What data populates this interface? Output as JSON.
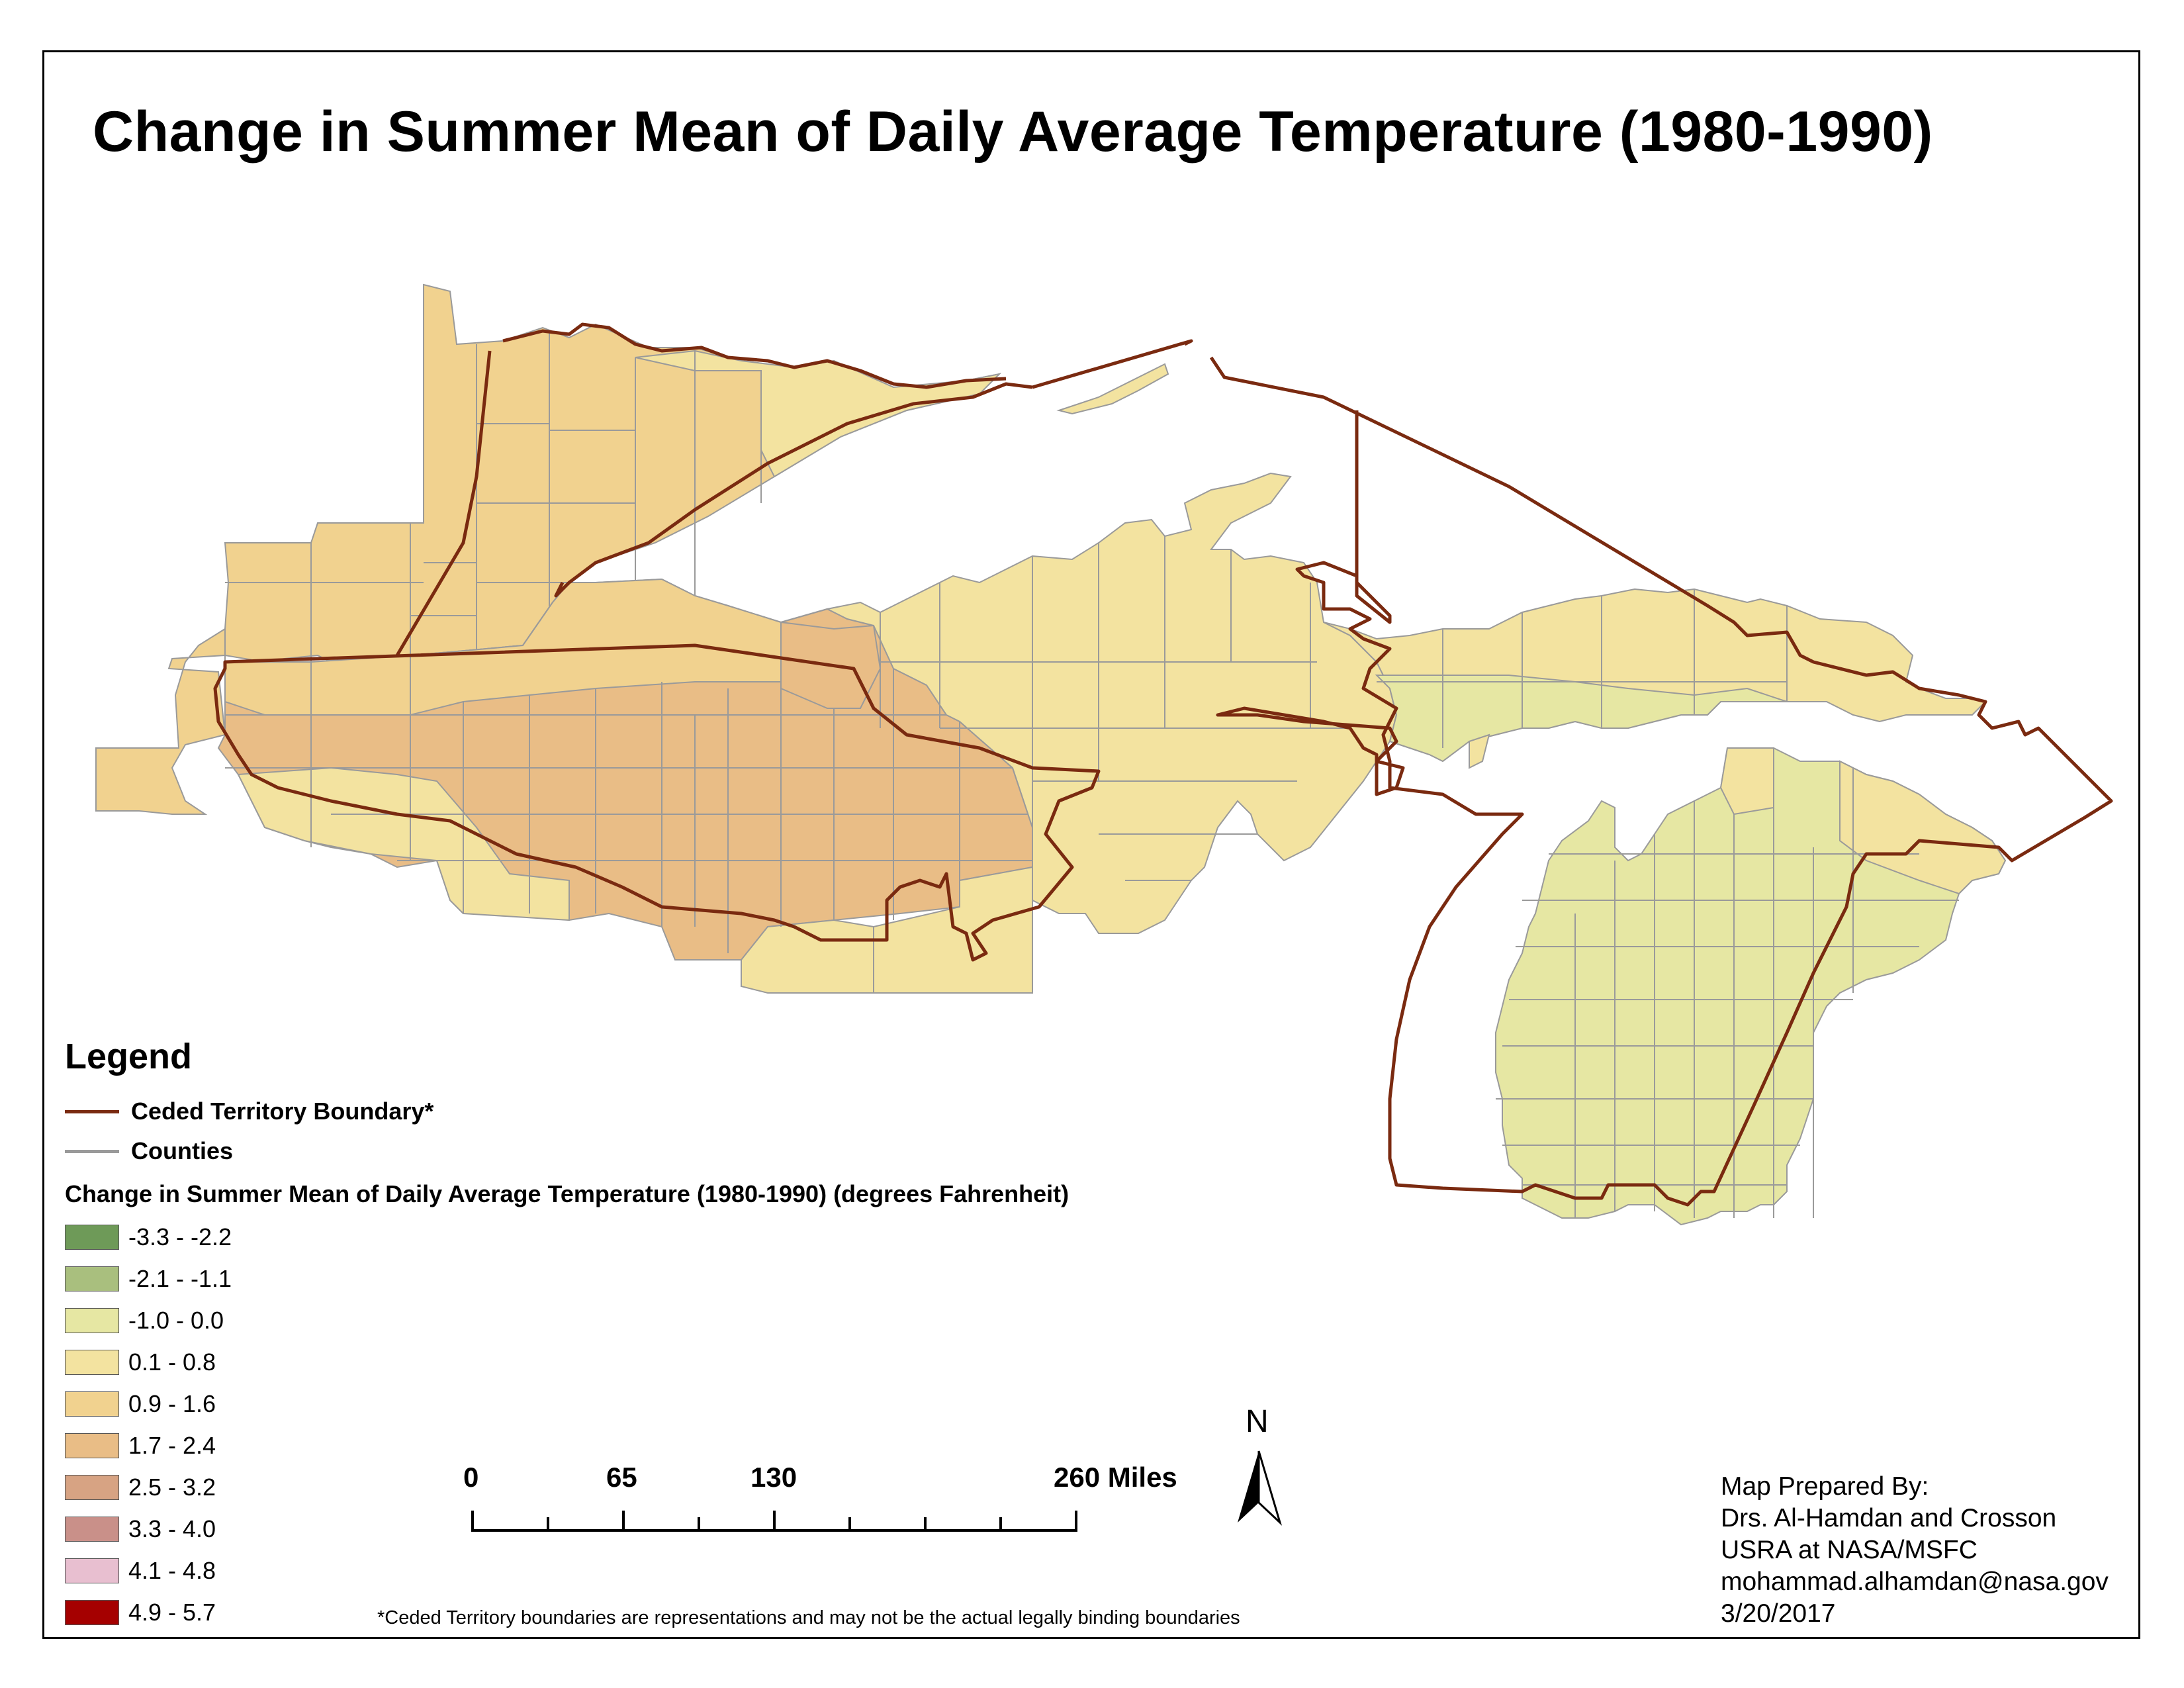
{
  "title": "Change in Summer Mean of Daily Average Temperature (1980-1990)",
  "legend": {
    "heading": "Legend",
    "boundary_label": "Ceded Territory Boundary*",
    "counties_label": "Counties",
    "classes_title": "Change in Summer Mean of Daily Average Temperature (1980-1990) (degrees Fahrenheit)",
    "classes": [
      {
        "label": "-3.3 - -2.2",
        "color": "#6e9a58"
      },
      {
        "label": "-2.1 - -1.1",
        "color": "#a9bf7e"
      },
      {
        "label": "-1.0 - 0.0",
        "color": "#e6e7a3"
      },
      {
        "label": "0.1 - 0.8",
        "color": "#f3e3a0"
      },
      {
        "label": "0.9 - 1.6",
        "color": "#f1d28f"
      },
      {
        "label": "1.7 - 2.4",
        "color": "#e9bd86"
      },
      {
        "label": "2.5 - 3.2",
        "color": "#d7a383"
      },
      {
        "label": "3.3 - 4.0",
        "color": "#c99089"
      },
      {
        "label": "4.1 - 4.8",
        "color": "#e8bfd0"
      },
      {
        "label": "4.9 - 5.7",
        "color": "#a50000"
      }
    ]
  },
  "scale_bar": {
    "labels": [
      "0",
      "65",
      "130",
      "260 Miles"
    ]
  },
  "north_arrow": {
    "label": "N",
    "icon": "north-arrow-icon"
  },
  "footnote": "*Ceded Territory boundaries are representations and may not be the actual legally binding boundaries",
  "credits": {
    "line1": "Map Prepared By:",
    "line2": "Drs. Al-Hamdan and Crosson",
    "line3": "USRA at NASA/MSFC",
    "line4": "mohammad.alhamdan@nasa.gov",
    "line5": "3/20/2017"
  },
  "colors": {
    "boundary": "#7a2a10",
    "county_lines": "#9a9a9a"
  }
}
